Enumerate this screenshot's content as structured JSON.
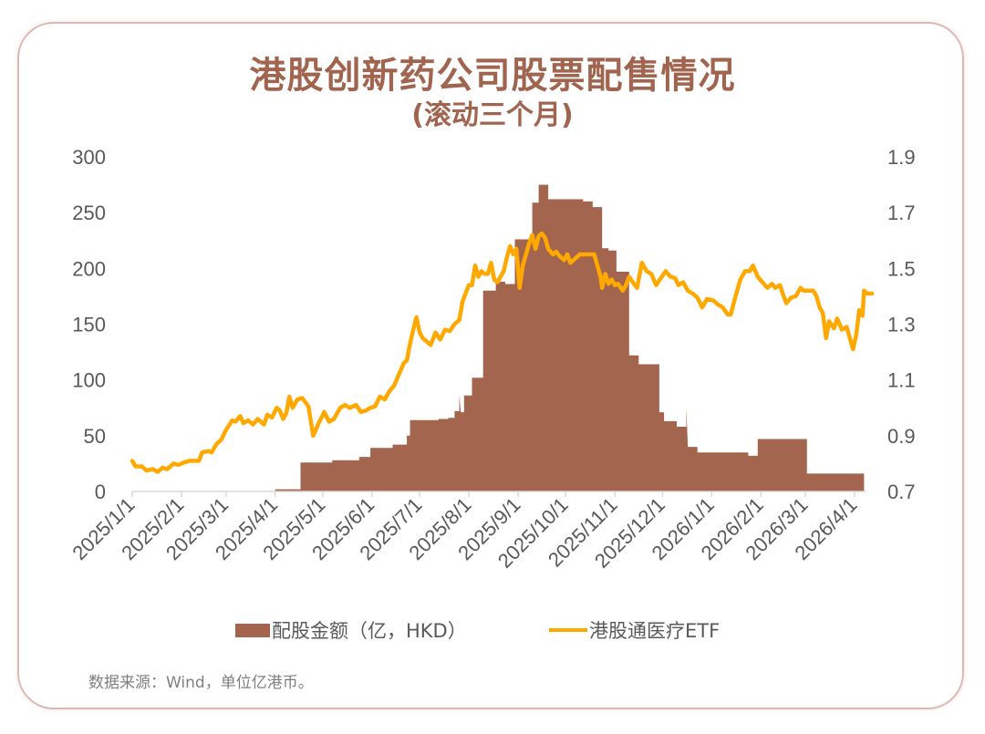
{
  "title": {
    "main": "港股创新药公司股票配售情况",
    "sub": "(滚动三个月)"
  },
  "legend": {
    "bar_label": "配股金额（亿，HKD）",
    "line_label": "港股通医疗ETF"
  },
  "source_note": "数据来源：Wind，单位亿港币。",
  "colors": {
    "bar": "#a3654e",
    "line": "#ffa800",
    "title": "#a0644f",
    "card_border": "#dcb9b0",
    "axis_text": "#595959",
    "axis_line": "#d9d9d9"
  },
  "chart_data": {
    "type": "bar+line",
    "title": "港股创新药公司股票配售情况（滚动三个月）",
    "xlabel": "",
    "ylabel_left": "配股金额（亿，HKD）",
    "ylabel_right": "港股通医疗ETF",
    "ylim_left": [
      0,
      300
    ],
    "ylim_right": [
      0.7,
      1.9
    ],
    "yticks_left": [
      "0",
      "50",
      "100",
      "150",
      "200",
      "250",
      "300"
    ],
    "yticks_right": [
      "0.7",
      "0.9",
      "1.1",
      "1.3",
      "1.5",
      "1.7",
      "1.9"
    ],
    "xticks": [
      "2025/1/1",
      "2025/2/1",
      "2025/3/1",
      "2025/4/1",
      "2025/5/1",
      "2025/6/1",
      "2025/7/1",
      "2025/8/1",
      "2025/9/1",
      "2025/10/1",
      "2025/11/1",
      "2025/12/1",
      "2026/1/1",
      "2026/2/1",
      "2026/3/1",
      "2026/4/1"
    ],
    "grid": false,
    "legend_position": "bottom",
    "series": [
      {
        "name": "配股金额（亿，HKD）",
        "type": "area-step",
        "axis": "left",
        "points": [
          [
            "2025/4/1",
            2
          ],
          [
            "2025/4/17",
            2
          ],
          [
            "2025/4/17",
            26
          ],
          [
            "2025/5/7",
            26
          ],
          [
            "2025/5/7",
            28
          ],
          [
            "2025/5/24",
            28
          ],
          [
            "2025/5/24",
            31
          ],
          [
            "2025/5/31",
            31
          ],
          [
            "2025/5/31",
            39
          ],
          [
            "2025/6/14",
            39
          ],
          [
            "2025/6/14",
            42
          ],
          [
            "2025/6/23",
            42
          ],
          [
            "2025/6/23",
            50
          ],
          [
            "2025/6/25",
            50
          ],
          [
            "2025/6/25",
            64
          ],
          [
            "2025/7/13",
            64
          ],
          [
            "2025/7/13",
            65
          ],
          [
            "2025/7/19",
            65
          ],
          [
            "2025/7/19",
            66
          ],
          [
            "2025/7/23",
            66
          ],
          [
            "2025/7/23",
            72
          ],
          [
            "2025/7/26",
            72
          ],
          [
            "2025/7/26",
            86
          ],
          [
            "2025/7/27",
            71
          ],
          [
            "2025/7/29",
            71
          ],
          [
            "2025/7/29",
            86
          ],
          [
            "2025/8/3",
            86
          ],
          [
            "2025/8/3",
            102
          ],
          [
            "2025/8/10",
            102
          ],
          [
            "2025/8/10",
            180
          ],
          [
            "2025/8/18",
            180
          ],
          [
            "2025/8/18",
            188
          ],
          [
            "2025/8/24",
            188
          ],
          [
            "2025/8/24",
            186
          ],
          [
            "2025/8/30",
            186
          ],
          [
            "2025/8/30",
            226
          ],
          [
            "2025/9/10",
            226
          ],
          [
            "2025/9/10",
            259
          ],
          [
            "2025/9/14",
            259
          ],
          [
            "2025/9/14",
            275
          ],
          [
            "2025/9/20",
            275
          ],
          [
            "2025/9/20",
            262
          ],
          [
            "2025/10/12",
            262
          ],
          [
            "2025/10/12",
            260
          ],
          [
            "2025/10/18",
            260
          ],
          [
            "2025/10/18",
            255
          ],
          [
            "2025/10/24",
            255
          ],
          [
            "2025/10/24",
            218
          ],
          [
            "2025/10/28",
            218
          ],
          [
            "2025/10/28",
            216
          ],
          [
            "2025/11/2",
            216
          ],
          [
            "2025/11/2",
            197
          ],
          [
            "2025/11/10",
            197
          ],
          [
            "2025/11/10",
            122
          ],
          [
            "2025/11/16",
            122
          ],
          [
            "2025/11/16",
            114
          ],
          [
            "2025/11/29",
            114
          ],
          [
            "2025/11/29",
            71
          ],
          [
            "2025/12/2",
            71
          ],
          [
            "2025/12/2",
            63
          ],
          [
            "2025/12/10",
            63
          ],
          [
            "2025/12/10",
            58
          ],
          [
            "2025/12/16",
            58
          ],
          [
            "2025/12/16",
            75
          ],
          [
            "2025/12/17",
            40
          ],
          [
            "2025/12/23",
            40
          ],
          [
            "2025/12/23",
            35
          ],
          [
            "2026/1/24",
            35
          ],
          [
            "2026/1/24",
            32
          ],
          [
            "2026/1/30",
            32
          ],
          [
            "2026/1/30",
            47
          ],
          [
            "2026/3/2",
            47
          ],
          [
            "2026/3/2",
            16
          ],
          [
            "2026/4/7",
            16
          ]
        ]
      },
      {
        "name": "港股通医疗ETF",
        "type": "line",
        "axis": "right",
        "points": [
          [
            "2025/1/1",
            0.81
          ],
          [
            "2025/1/3",
            0.79
          ],
          [
            "2025/1/7",
            0.79
          ],
          [
            "2025/1/10",
            0.775
          ],
          [
            "2025/1/14",
            0.78
          ],
          [
            "2025/1/17",
            0.77
          ],
          [
            "2025/1/20",
            0.785
          ],
          [
            "2025/1/23",
            0.78
          ],
          [
            "2025/1/27",
            0.8
          ],
          [
            "2025/1/30",
            0.795
          ],
          [
            "2025/2/3",
            0.805
          ],
          [
            "2025/2/6",
            0.81
          ],
          [
            "2025/2/12",
            0.81
          ],
          [
            "2025/2/14",
            0.84
          ],
          [
            "2025/2/18",
            0.845
          ],
          [
            "2025/2/20",
            0.84
          ],
          [
            "2025/2/23",
            0.87
          ],
          [
            "2025/2/26",
            0.885
          ],
          [
            "2025/3/1",
            0.92
          ],
          [
            "2025/3/5",
            0.955
          ],
          [
            "2025/3/7",
            0.95
          ],
          [
            "2025/3/10",
            0.97
          ],
          [
            "2025/3/12",
            0.945
          ],
          [
            "2025/3/15",
            0.955
          ],
          [
            "2025/3/18",
            0.94
          ],
          [
            "2025/3/21",
            0.96
          ],
          [
            "2025/3/25",
            0.94
          ],
          [
            "2025/3/27",
            0.975
          ],
          [
            "2025/3/30",
            0.965
          ],
          [
            "2025/4/2",
            1.0
          ],
          [
            "2025/4/4",
            0.99
          ],
          [
            "2025/4/6",
            0.96
          ],
          [
            "2025/4/8",
            0.98
          ],
          [
            "2025/4/10",
            1.04
          ],
          [
            "2025/4/12",
            1.0
          ],
          [
            "2025/4/15",
            1.03
          ],
          [
            "2025/4/18",
            1.035
          ],
          [
            "2025/4/22",
            1.005
          ],
          [
            "2025/4/25",
            0.9
          ],
          [
            "2025/4/28",
            0.94
          ],
          [
            "2025/5/2",
            0.985
          ],
          [
            "2025/5/5",
            0.95
          ],
          [
            "2025/5/8",
            0.96
          ],
          [
            "2025/5/12",
            1.0
          ],
          [
            "2025/5/15",
            1.01
          ],
          [
            "2025/5/18",
            1.0
          ],
          [
            "2025/5/22",
            1.01
          ],
          [
            "2025/5/25",
            0.985
          ],
          [
            "2025/5/28",
            0.99
          ],
          [
            "2025/5/31",
            1.0
          ],
          [
            "2025/6/3",
            1.005
          ],
          [
            "2025/6/6",
            1.04
          ],
          [
            "2025/6/9",
            1.03
          ],
          [
            "2025/6/12",
            1.06
          ],
          [
            "2025/6/15",
            1.08
          ],
          [
            "2025/6/18",
            1.12
          ],
          [
            "2025/6/21",
            1.16
          ],
          [
            "2025/6/23",
            1.17
          ],
          [
            "2025/6/25",
            1.23
          ],
          [
            "2025/6/27",
            1.28
          ],
          [
            "2025/6/29",
            1.325
          ],
          [
            "2025/7/1",
            1.27
          ],
          [
            "2025/7/3",
            1.25
          ],
          [
            "2025/7/5",
            1.24
          ],
          [
            "2025/7/8",
            1.225
          ],
          [
            "2025/7/11",
            1.27
          ],
          [
            "2025/7/14",
            1.245
          ],
          [
            "2025/7/17",
            1.28
          ],
          [
            "2025/7/20",
            1.275
          ],
          [
            "2025/7/23",
            1.3
          ],
          [
            "2025/7/26",
            1.315
          ],
          [
            "2025/7/28",
            1.38
          ],
          [
            "2025/7/30",
            1.41
          ],
          [
            "2025/8/1",
            1.44
          ],
          [
            "2025/8/3",
            1.44
          ],
          [
            "2025/8/5",
            1.51
          ],
          [
            "2025/8/7",
            1.47
          ],
          [
            "2025/8/9",
            1.49
          ],
          [
            "2025/8/11",
            1.48
          ],
          [
            "2025/8/13",
            1.48
          ],
          [
            "2025/8/15",
            1.52
          ],
          [
            "2025/8/17",
            1.46
          ],
          [
            "2025/8/19",
            1.45
          ],
          [
            "2025/8/21",
            1.47
          ],
          [
            "2025/8/23",
            1.49
          ],
          [
            "2025/8/25",
            1.54
          ],
          [
            "2025/8/27",
            1.58
          ],
          [
            "2025/8/29",
            1.55
          ],
          [
            "2025/8/31",
            1.57
          ],
          [
            "2025/9/2",
            1.43
          ],
          [
            "2025/9/4",
            1.51
          ],
          [
            "2025/9/6",
            1.55
          ],
          [
            "2025/9/8",
            1.59
          ],
          [
            "2025/9/10",
            1.62
          ],
          [
            "2025/9/12",
            1.57
          ],
          [
            "2025/9/14",
            1.615
          ],
          [
            "2025/9/16",
            1.625
          ],
          [
            "2025/9/18",
            1.61
          ],
          [
            "2025/9/20",
            1.57
          ],
          [
            "2025/9/23",
            1.55
          ],
          [
            "2025/9/25",
            1.56
          ],
          [
            "2025/9/27",
            1.545
          ],
          [
            "2025/9/30",
            1.53
          ],
          [
            "2025/10/2",
            1.55
          ],
          [
            "2025/10/4",
            1.52
          ],
          [
            "2025/10/7",
            1.535
          ],
          [
            "2025/10/10",
            1.55
          ],
          [
            "2025/10/13",
            1.55
          ],
          [
            "2025/10/16",
            1.55
          ],
          [
            "2025/10/19",
            1.55
          ],
          [
            "2025/10/21",
            1.51
          ],
          [
            "2025/10/23",
            1.47
          ],
          [
            "2025/10/24",
            1.43
          ],
          [
            "2025/10/26",
            1.48
          ],
          [
            "2025/10/28",
            1.445
          ],
          [
            "2025/10/30",
            1.46
          ],
          [
            "2025/11/1",
            1.44
          ],
          [
            "2025/11/3",
            1.445
          ],
          [
            "2025/11/6",
            1.42
          ],
          [
            "2025/11/8",
            1.44
          ],
          [
            "2025/11/10",
            1.47
          ],
          [
            "2025/11/13",
            1.445
          ],
          [
            "2025/11/15",
            1.43
          ],
          [
            "2025/11/18",
            1.52
          ],
          [
            "2025/11/21",
            1.49
          ],
          [
            "2025/11/24",
            1.48
          ],
          [
            "2025/11/27",
            1.44
          ],
          [
            "2025/11/30",
            1.465
          ],
          [
            "2025/12/3",
            1.49
          ],
          [
            "2025/12/6",
            1.47
          ],
          [
            "2025/12/9",
            1.465
          ],
          [
            "2025/12/11",
            1.44
          ],
          [
            "2025/12/14",
            1.45
          ],
          [
            "2025/12/17",
            1.42
          ],
          [
            "2025/12/20",
            1.41
          ],
          [
            "2025/12/23",
            1.395
          ],
          [
            "2025/12/26",
            1.36
          ],
          [
            "2025/12/29",
            1.39
          ],
          [
            "2026/1/2",
            1.385
          ],
          [
            "2026/1/5",
            1.37
          ],
          [
            "2026/1/8",
            1.36
          ],
          [
            "2026/1/11",
            1.335
          ],
          [
            "2026/1/13",
            1.335
          ],
          [
            "2026/1/16",
            1.4
          ],
          [
            "2026/1/19",
            1.46
          ],
          [
            "2026/1/22",
            1.49
          ],
          [
            "2026/1/25",
            1.49
          ],
          [
            "2026/1/27",
            1.51
          ],
          [
            "2026/1/30",
            1.47
          ],
          [
            "2026/2/2",
            1.45
          ],
          [
            "2026/2/5",
            1.43
          ],
          [
            "2026/2/8",
            1.445
          ],
          [
            "2026/2/10",
            1.43
          ],
          [
            "2026/2/13",
            1.44
          ],
          [
            "2026/2/15",
            1.405
          ],
          [
            "2026/2/17",
            1.375
          ],
          [
            "2026/2/20",
            1.395
          ],
          [
            "2026/2/23",
            1.4
          ],
          [
            "2026/2/26",
            1.43
          ],
          [
            "2026/2/28",
            1.42
          ],
          [
            "2026/3/3",
            1.42
          ],
          [
            "2026/3/6",
            1.42
          ],
          [
            "2026/3/8",
            1.4
          ],
          [
            "2026/3/10",
            1.36
          ],
          [
            "2026/3/12",
            1.34
          ],
          [
            "2026/3/14",
            1.25
          ],
          [
            "2026/3/16",
            1.31
          ],
          [
            "2026/3/19",
            1.285
          ],
          [
            "2026/3/21",
            1.32
          ],
          [
            "2026/3/24",
            1.28
          ],
          [
            "2026/3/27",
            1.29
          ],
          [
            "2026/3/29",
            1.25
          ],
          [
            "2026/3/31",
            1.21
          ],
          [
            "2026/4/2",
            1.26
          ],
          [
            "2026/4/4",
            1.35
          ],
          [
            "2026/4/6",
            1.33
          ],
          [
            "2026/4/7",
            1.42
          ],
          [
            "2026/4/9",
            1.41
          ],
          [
            "2026/4/12",
            1.41
          ]
        ]
      }
    ]
  }
}
